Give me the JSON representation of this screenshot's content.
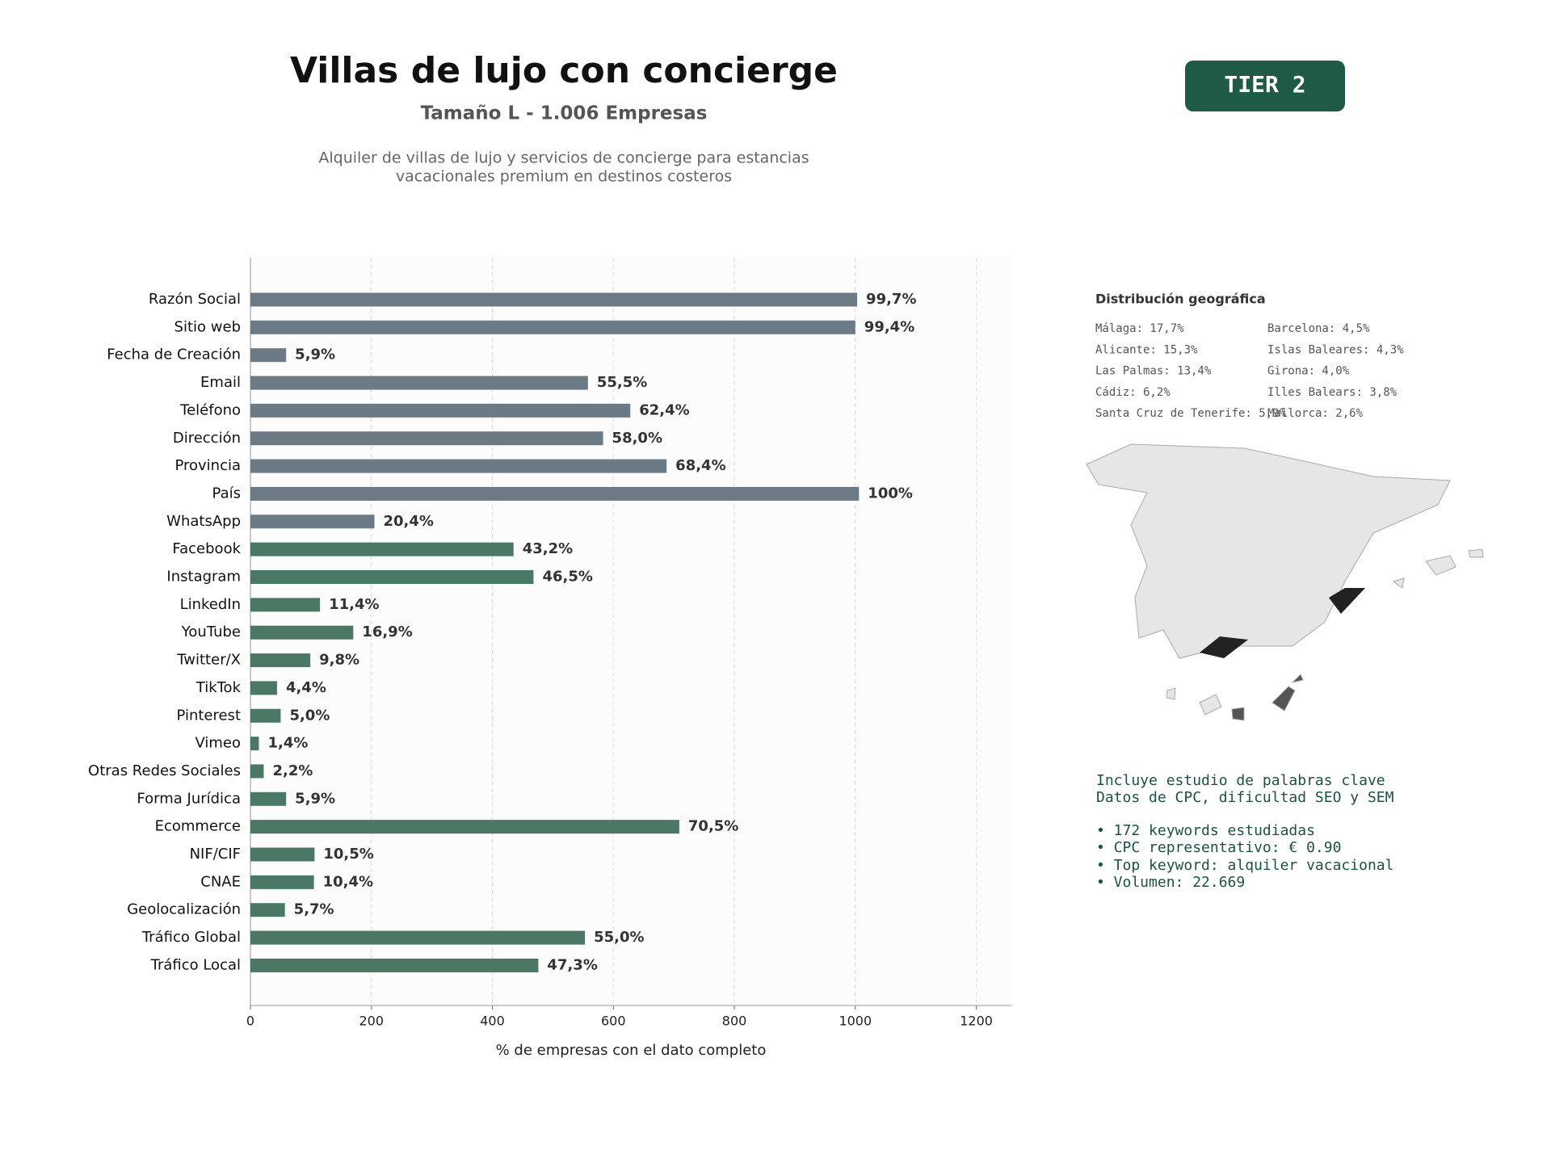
{
  "header": {
    "title": "Villas de lujo con concierge",
    "subtitle": "Tamaño L - 1.006 Empresas",
    "description": [
      "Alquiler de villas de lujo y servicios de concierge para estancias",
      "vacacionales premium en destinos costeros"
    ],
    "badge": "TIER 2"
  },
  "chart_data": {
    "type": "bar",
    "orientation": "horizontal",
    "xlabel": "% de empresas con el dato completo",
    "categories": [
      "Razón Social",
      "Sitio web",
      "Fecha de Creación",
      "Email",
      "Teléfono",
      "Dirección",
      "Provincia",
      "País",
      "WhatsApp",
      "Facebook",
      "Instagram",
      "LinkedIn",
      "YouTube",
      "Twitter/X",
      "TikTok",
      "Pinterest",
      "Vimeo",
      "Otras Redes Sociales",
      "Forma Jurídica",
      "Ecommerce",
      "NIF/CIF",
      "CNAE",
      "Geolocalización",
      "Tráfico Global",
      "Tráfico Local"
    ],
    "values": [
      1003,
      1000,
      59,
      558,
      628,
      583,
      688,
      1006,
      205,
      435,
      468,
      115,
      170,
      99,
      44,
      50,
      14,
      22,
      59,
      709,
      106,
      105,
      57,
      553,
      476
    ],
    "value_labels": [
      "99,7%",
      "99,4%",
      "5,9%",
      "55,5%",
      "62,4%",
      "58,0%",
      "68,4%",
      "100%",
      "20,4%",
      "43,2%",
      "46,5%",
      "11,4%",
      "16,9%",
      "9,8%",
      "4,4%",
      "5,0%",
      "1,4%",
      "2,2%",
      "5,9%",
      "70,5%",
      "10,5%",
      "10,4%",
      "5,7%",
      "55,0%",
      "47,3%"
    ],
    "colors": [
      "#6c7a86",
      "#6c7a86",
      "#6c7a86",
      "#6c7a86",
      "#6c7a86",
      "#6c7a86",
      "#6c7a86",
      "#6c7a86",
      "#6c7a86",
      "#4a7865",
      "#4a7865",
      "#4a7865",
      "#4a7865",
      "#4a7865",
      "#4a7865",
      "#4a7865",
      "#4a7865",
      "#4a7865",
      "#4a7865",
      "#4a7865",
      "#4a7865",
      "#4a7865",
      "#4a7865",
      "#4a7865",
      "#4a7865"
    ],
    "xlim": [
      0,
      1258
    ],
    "xticks": [
      0,
      200,
      400,
      600,
      800,
      1000,
      1200
    ],
    "grid": true
  },
  "geo": {
    "title": "Distribución geográfica",
    "items": [
      "Málaga: 17,7%",
      "Alicante: 15,3%",
      "Las Palmas: 13,4%",
      "Cádiz: 6,2%",
      "Santa Cruz de Tenerife: 5,9%",
      "Barcelona: 4,5%",
      "Islas Baleares: 4,3%",
      "Girona: 4,0%",
      "Illes Balears: 3,8%",
      "Mallorca: 2,6%"
    ]
  },
  "keywords": {
    "lines": [
      "Incluye estudio de palabras clave",
      "Datos de CPC, dificultad SEO y SEM"
    ],
    "bullets": [
      "• 172 keywords estudiadas",
      "• CPC representativo: € 0.90",
      "• Top keyword: alquiler vacacional",
      "• Volumen: 22.669"
    ]
  }
}
